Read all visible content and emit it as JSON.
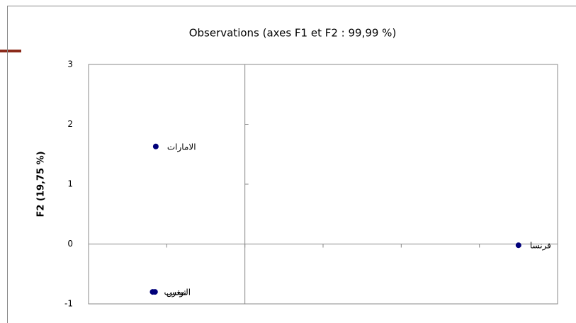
{
  "chart_data": {
    "type": "scatter",
    "title": "Observations (axes F1 et F2 : 99,99 %)",
    "y_label": "F2 (19,75 %)",
    "xlim": [
      -2,
      4
    ],
    "xticks": [
      -2,
      -1,
      0,
      1,
      2,
      3,
      4
    ],
    "ylim": [
      -1,
      3
    ],
    "yticks": [
      -1,
      0,
      1,
      2,
      3
    ],
    "series": [
      {
        "color": "#00007a",
        "x": [
          -1.14,
          3.5,
          -1.18,
          -1.15
        ],
        "values": [
          1.63,
          -0.02,
          -0.8,
          -0.8
        ],
        "labels": [
          "الامارات",
          "فرنسا",
          "المغرب",
          "تونس"
        ]
      }
    ]
  }
}
